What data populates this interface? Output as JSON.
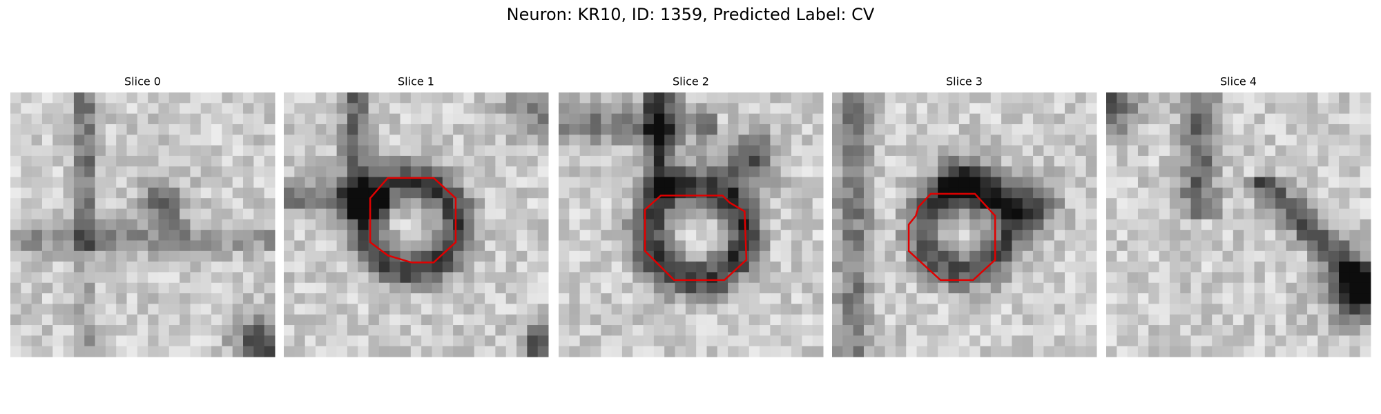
{
  "title": "Neuron: KR10, ID: 1359, Predicted Label: CV",
  "panels": [
    {
      "title": "Slice 0"
    },
    {
      "title": "Slice 1"
    },
    {
      "title": "Slice 2"
    },
    {
      "title": "Slice 3"
    },
    {
      "title": "Slice 4"
    }
  ]
}
